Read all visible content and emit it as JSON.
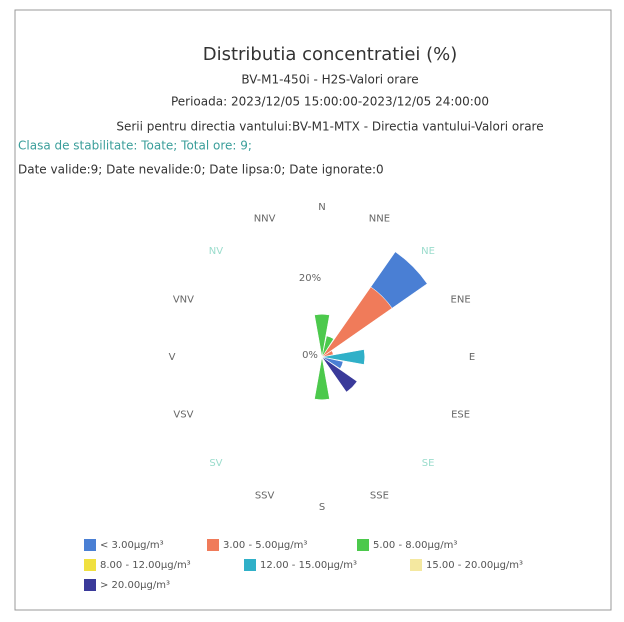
{
  "chart_data": {
    "type": "windrose",
    "title": "Distributia concentratiei (%)",
    "subtitles": [
      "BV-M1-450i - H2S-Valori orare",
      "Perioada: 2023/12/05 15:00:00-2023/12/05 24:00:00",
      "Serii pentru directia vantului:BV-M1-MTX - Directia vantului-Valori orare",
      "Clasa de stabilitate: Toate; Total ore: 9;",
      "Date valide:9; Date nevalide:0; Date lipsa:0; Date ignorate:0"
    ],
    "categories": [
      "N",
      "NNE",
      "NE",
      "ENE",
      "E",
      "ESE",
      "SE",
      "SSE",
      "S",
      "SSV",
      "SV",
      "VSV",
      "V",
      "VNV",
      "NV",
      "NNV"
    ],
    "series": [
      {
        "name": "< 3.00µg/m³",
        "color": "#4a7fd4",
        "values": [
          0,
          0,
          11.1,
          0,
          0,
          5.6,
          0,
          0,
          0,
          0,
          0,
          0,
          0,
          0,
          0,
          0
        ]
      },
      {
        "name": "3.00 - 5.00µg/m³",
        "color": "#f07b5a",
        "values": [
          0,
          0,
          22.2,
          3,
          0,
          0,
          0,
          0,
          0,
          0,
          0,
          0,
          0,
          0,
          0,
          0
        ]
      },
      {
        "name": "5.00 - 8.00µg/m³",
        "color": "#4cc94c",
        "values": [
          11.1,
          5.6,
          0,
          0,
          0,
          0,
          0,
          0,
          11.1,
          0,
          0,
          0,
          0,
          0,
          0,
          0
        ]
      },
      {
        "name": "8.00 - 12.00µg/m³",
        "color": "#f0e040",
        "values": [
          0,
          0,
          0,
          0,
          0,
          0,
          0,
          0,
          0,
          0,
          0,
          0,
          0,
          0,
          0,
          0
        ]
      },
      {
        "name": "12.00 - 15.00µg/m³",
        "color": "#30b0c8",
        "values": [
          0,
          0,
          0,
          0,
          11.1,
          0,
          0,
          0,
          0,
          0,
          0,
          0,
          0,
          0,
          0,
          0
        ]
      },
      {
        "name": "15.00 - 20.00µg/m³",
        "color": "#f4e8a0",
        "values": [
          0,
          0,
          0,
          0,
          0,
          0,
          0,
          0,
          0,
          0,
          0,
          0,
          0,
          0,
          0,
          0
        ]
      },
      {
        "name": "> 20.00µg/m³",
        "color": "#3a3a9a",
        "values": [
          0,
          0,
          0,
          0,
          0,
          0,
          11.1,
          0,
          0,
          0,
          0,
          0,
          0,
          0,
          0,
          0
        ]
      }
    ],
    "rlim": [
      0,
      40
    ],
    "rticks": [
      {
        "value": 0,
        "label": "0%"
      },
      {
        "value": 20,
        "label": "20%"
      }
    ]
  }
}
